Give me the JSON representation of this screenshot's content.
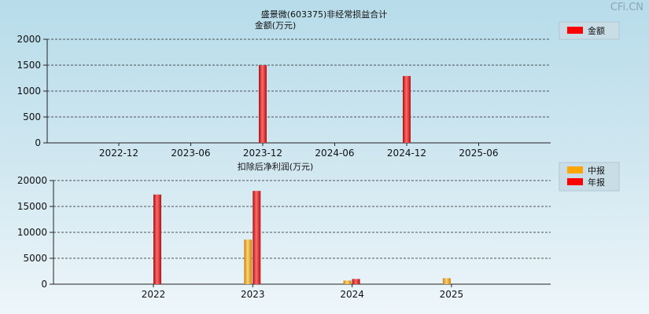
{
  "watermark": "CFi.CN",
  "colors": {
    "year": "#e51a1a",
    "mid": "#f0a81a",
    "legend_year": "#ff0000",
    "legend_mid": "#ffa500"
  },
  "chart_data": [
    {
      "type": "bar",
      "title": "盛景微(603375)非经常损益合计",
      "ylabel": "金额(万元)",
      "ylim": [
        0,
        2000
      ],
      "yticks": [
        0,
        500,
        1000,
        1500,
        2000
      ],
      "grid": true,
      "legend_position": "top-right",
      "x_ticks": [
        "2022-12",
        "2023-06",
        "2023-12",
        "2024-06",
        "2024-12",
        "2025-06"
      ],
      "series": [
        {
          "name": "金额",
          "points": [
            {
              "x": "2023-12",
              "value": 1500
            },
            {
              "x": "2024-12",
              "value": 1290
            }
          ]
        }
      ]
    },
    {
      "type": "bar",
      "title": "扣除后净利润(万元)",
      "ylim": [
        0,
        20000
      ],
      "yticks": [
        0,
        5000,
        10000,
        15000,
        20000
      ],
      "grid": true,
      "legend_position": "top-right",
      "categories": [
        "2022",
        "2023",
        "2024",
        "2025"
      ],
      "series": [
        {
          "name": "中报",
          "values": [
            null,
            8600,
            700,
            1150
          ]
        },
        {
          "name": "年报",
          "values": [
            17300,
            18000,
            1000,
            null
          ]
        }
      ]
    }
  ]
}
